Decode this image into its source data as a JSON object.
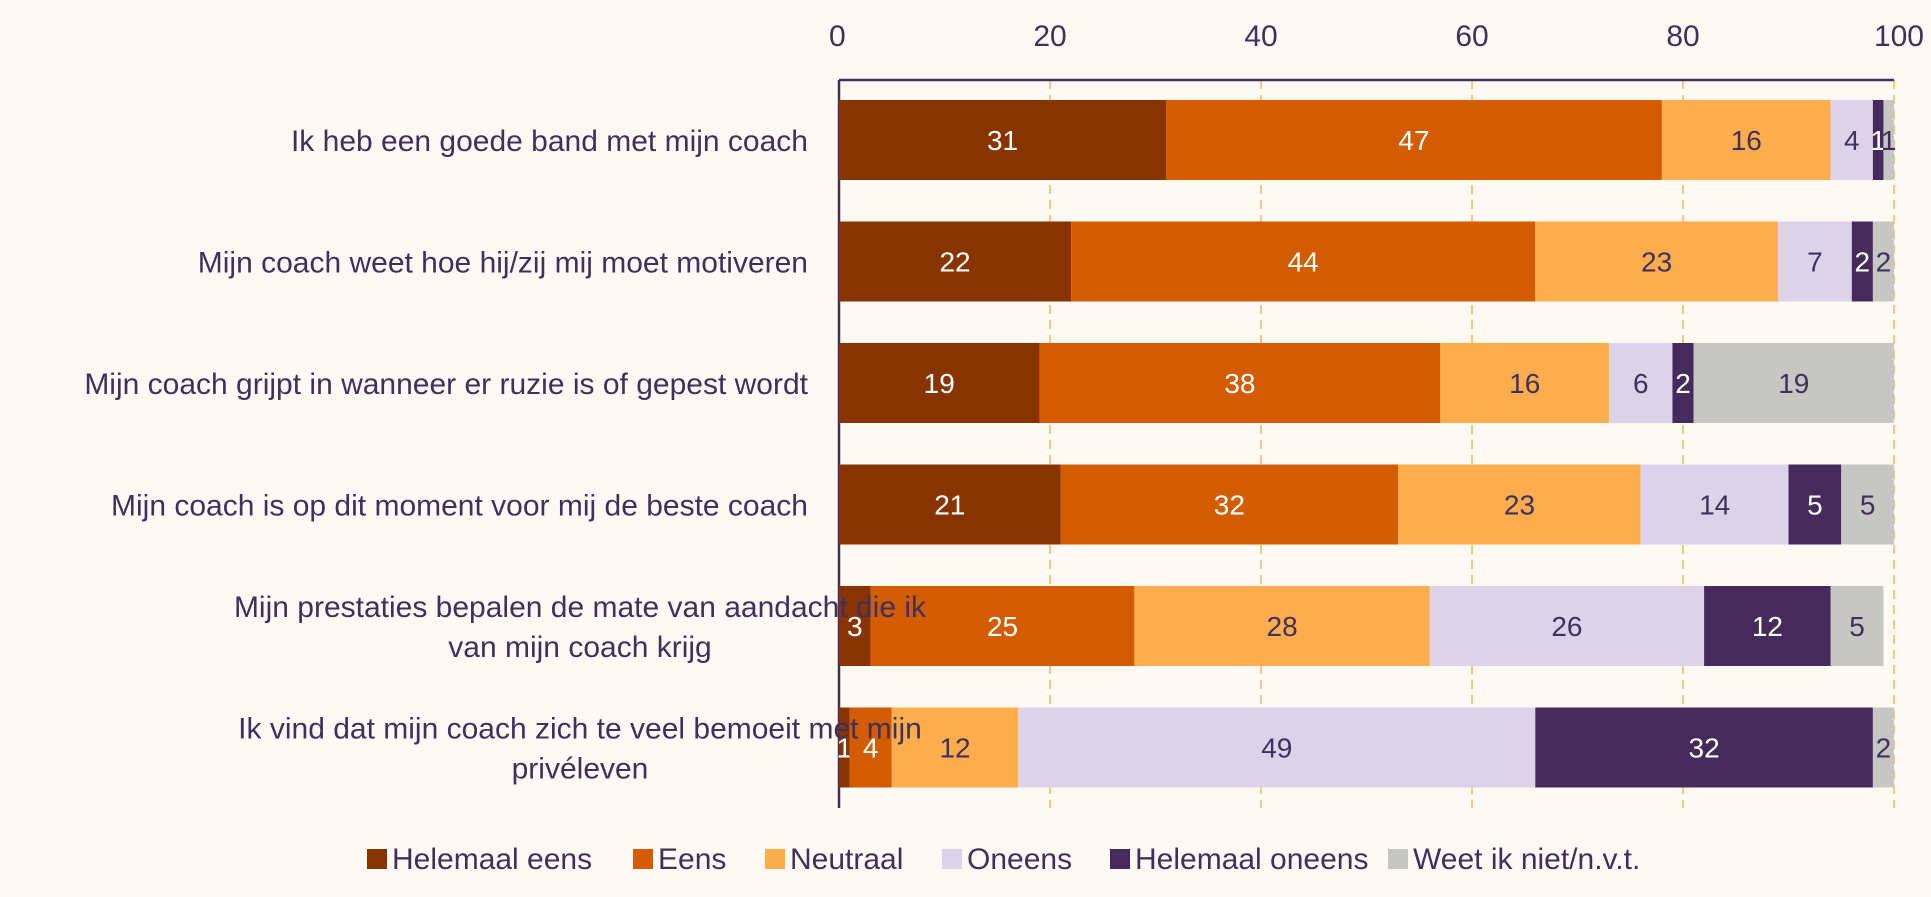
{
  "chart_data": {
    "type": "bar",
    "orientation": "horizontal",
    "stacked": true,
    "title": "",
    "xlabel": "",
    "ylabel": "",
    "xlim": [
      0,
      100
    ],
    "x_ticks": [
      "0",
      "20",
      "40",
      "60",
      "80",
      "100"
    ],
    "x_axis_position": "top",
    "grid": "vertical dashed",
    "legend_position": "bottom",
    "categories": [
      [
        "Ik heb een goede band met mijn coach"
      ],
      [
        "Mijn coach weet hoe hij/zij mij moet motiveren"
      ],
      [
        "Mijn coach grijpt in wanneer er ruzie is of gepest wordt"
      ],
      [
        "Mijn coach is op dit moment voor mij de beste coach"
      ],
      [
        "Mijn prestaties bepalen de mate van aandacht die ik",
        "van mijn coach krijg"
      ],
      [
        "Ik vind dat mijn coach zich te veel bemoeit met mijn",
        "privéleven"
      ]
    ],
    "series": [
      {
        "name": "Helemaal eens",
        "color": "#873400",
        "label_color": "#ffffff",
        "values": [
          31,
          22,
          19,
          21,
          3,
          1
        ]
      },
      {
        "name": "Eens",
        "color": "#d35c00",
        "label_color": "#ffffff",
        "values": [
          47,
          44,
          38,
          32,
          25,
          4
        ]
      },
      {
        "name": "Neutraal",
        "color": "#fdad4e",
        "label_color": "#40305c",
        "values": [
          16,
          23,
          16,
          23,
          28,
          12
        ]
      },
      {
        "name": "Oneens",
        "color": "#dcd3ea",
        "label_color": "#40305c",
        "values": [
          4,
          7,
          6,
          14,
          26,
          49
        ]
      },
      {
        "name": "Helemaal oneens",
        "color": "#442b5c",
        "label_color": "#ffffff",
        "values": [
          1,
          2,
          2,
          5,
          12,
          32
        ]
      },
      {
        "name": "Weet ik niet/n.v.t.",
        "color": "#c6c6c3",
        "label_color": "#40305c",
        "values": [
          1,
          2,
          19,
          5,
          5,
          2
        ]
      }
    ]
  },
  "style": {
    "background": "#fefaf3",
    "text_color": "#40305c",
    "grid_color": "#f7c783"
  }
}
